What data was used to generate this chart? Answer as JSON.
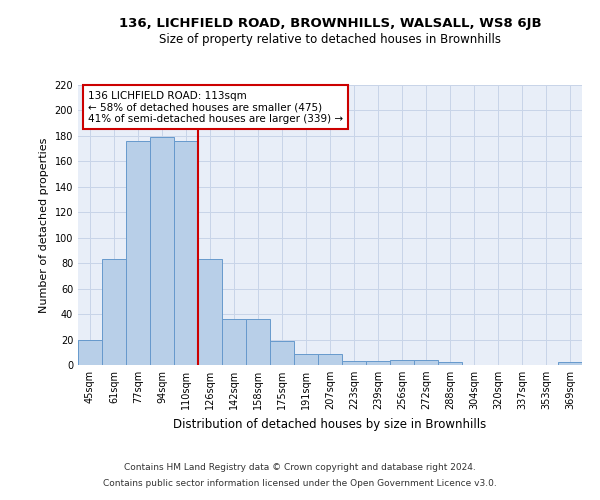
{
  "title": "136, LICHFIELD ROAD, BROWNHILLS, WALSALL, WS8 6JB",
  "subtitle": "Size of property relative to detached houses in Brownhills",
  "xlabel": "Distribution of detached houses by size in Brownhills",
  "ylabel": "Number of detached properties",
  "categories": [
    "45sqm",
    "61sqm",
    "77sqm",
    "94sqm",
    "110sqm",
    "126sqm",
    "142sqm",
    "158sqm",
    "175sqm",
    "191sqm",
    "207sqm",
    "223sqm",
    "239sqm",
    "256sqm",
    "272sqm",
    "288sqm",
    "304sqm",
    "320sqm",
    "337sqm",
    "353sqm",
    "369sqm"
  ],
  "values": [
    20,
    83,
    176,
    179,
    176,
    83,
    36,
    36,
    19,
    9,
    9,
    3,
    3,
    4,
    4,
    2,
    0,
    0,
    0,
    0,
    2
  ],
  "bar_color": "#b8cfe8",
  "bar_edge_color": "#6699cc",
  "vline_color": "#cc0000",
  "vline_x": 4.5,
  "annotation_text": "136 LICHFIELD ROAD: 113sqm\n← 58% of detached houses are smaller (475)\n41% of semi-detached houses are larger (339) →",
  "annotation_box_facecolor": "#ffffff",
  "annotation_box_edgecolor": "#cc0000",
  "grid_color": "#c8d4e8",
  "bg_color": "#e8eef8",
  "footer_line1": "Contains HM Land Registry data © Crown copyright and database right 2024.",
  "footer_line2": "Contains public sector information licensed under the Open Government Licence v3.0.",
  "ylim": [
    0,
    220
  ],
  "yticks": [
    0,
    20,
    40,
    60,
    80,
    100,
    120,
    140,
    160,
    180,
    200,
    220
  ]
}
